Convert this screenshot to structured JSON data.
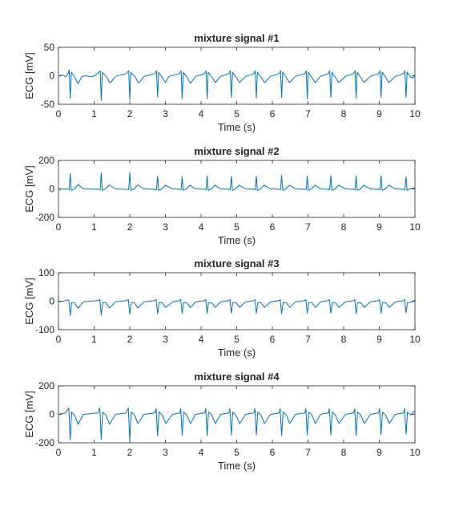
{
  "chart_data": [
    {
      "type": "line",
      "title": "mixture signal #1",
      "xlabel": "Time (s)",
      "ylabel": "ECG [mV]",
      "xlim": [
        0,
        10
      ],
      "ylim": [
        -50,
        50
      ],
      "xticks": [
        0,
        1,
        2,
        3,
        4,
        5,
        6,
        7,
        8,
        9,
        10
      ],
      "yticks": [
        -50,
        0,
        50
      ],
      "grid": false,
      "line_color": "#0072BD",
      "beat_times": [
        0.33,
        1.2,
        2.0,
        2.78,
        3.47,
        4.17,
        4.85,
        5.55,
        6.26,
        6.98,
        7.64,
        8.35,
        9.05,
        9.75
      ],
      "r_peak_values": [
        -40,
        -43,
        -42,
        -37,
        -40,
        -40,
        -38,
        -39,
        -38,
        -40,
        -38,
        -40,
        -38,
        -38
      ],
      "series": [
        {
          "x": [
            0,
            0.12,
            0.2,
            0.27,
            0.3,
            0.33,
            0.36,
            0.45,
            0.55,
            0.65,
            0.75,
            0.95,
            1.1,
            1.17,
            1.2,
            1.23,
            1.35,
            1.45,
            1.6,
            1.9,
            1.97,
            2.0,
            2.03,
            2.15,
            2.25,
            2.4,
            2.7,
            2.75,
            2.78,
            2.81,
            2.9,
            3.0,
            3.1,
            3.4,
            3.44,
            3.47,
            3.5,
            3.6,
            3.7,
            3.85,
            4.1,
            4.14,
            4.17,
            4.2,
            4.3,
            4.4,
            4.55,
            4.78,
            4.82,
            4.85,
            4.88,
            4.98,
            5.08,
            5.25,
            5.48,
            5.52,
            5.55,
            5.58,
            5.68,
            5.78,
            5.95,
            6.19,
            6.23,
            6.26,
            6.29,
            6.38,
            6.48,
            6.65,
            6.91,
            6.95,
            6.98,
            7.01,
            7.1,
            7.2,
            7.35,
            7.57,
            7.61,
            7.64,
            7.67,
            7.76,
            7.86,
            8.05,
            8.28,
            8.32,
            8.35,
            8.38,
            8.47,
            8.57,
            8.75,
            8.98,
            9.02,
            9.05,
            9.08,
            9.17,
            9.27,
            9.45,
            9.68,
            9.72,
            9.75,
            9.78,
            9.87,
            9.95,
            10
          ],
          "values": [
            -1,
            2,
            -2,
            4,
            10,
            -40,
            6,
            -2,
            -14,
            -2,
            0,
            -2,
            4,
            9,
            -43,
            6,
            -2,
            -13,
            -1,
            4,
            9,
            -42,
            6,
            -2,
            -13,
            -1,
            4,
            9,
            -37,
            6,
            -2,
            -12,
            -1,
            4,
            9,
            -40,
            6,
            -2,
            -13,
            -1,
            4,
            9,
            -40,
            6,
            -2,
            -12,
            -1,
            4,
            9,
            -38,
            6,
            -2,
            -12,
            -1,
            4,
            9,
            -39,
            6,
            -2,
            -12,
            -1,
            4,
            9,
            -38,
            6,
            -2,
            -12,
            -1,
            4,
            9,
            -40,
            6,
            -2,
            -12,
            -1,
            4,
            9,
            -38,
            6,
            -2,
            -12,
            -1,
            4,
            9,
            -40,
            6,
            -2,
            -12,
            -1,
            4,
            9,
            -38,
            6,
            -2,
            -12,
            -1,
            4,
            9,
            -38,
            6,
            -2,
            -4,
            2
          ]
        }
      ]
    },
    {
      "type": "line",
      "title": "mixture signal #2",
      "xlabel": "Time (s)",
      "ylabel": "ECG [mV]",
      "xlim": [
        0,
        10
      ],
      "ylim": [
        -200,
        200
      ],
      "xticks": [
        0,
        1,
        2,
        3,
        4,
        5,
        6,
        7,
        8,
        9,
        10
      ],
      "yticks": [
        -200,
        0,
        200
      ],
      "grid": false,
      "line_color": "#0072BD",
      "beat_times": [
        0.33,
        1.2,
        2.0,
        2.78,
        3.47,
        4.17,
        4.85,
        5.55,
        6.26,
        6.98,
        7.64,
        8.35,
        9.05,
        9.75
      ],
      "r_peak_values": [
        108,
        112,
        115,
        90,
        85,
        90,
        88,
        90,
        95,
        90,
        93,
        90,
        92,
        85
      ],
      "series": [
        {
          "x": [
            0,
            0.2,
            0.3,
            0.33,
            0.36,
            0.45,
            0.55,
            0.7,
            1.1,
            1.17,
            1.2,
            1.23,
            1.32,
            1.42,
            1.6,
            1.9,
            1.97,
            2.0,
            2.03,
            2.12,
            2.22,
            2.4,
            2.7,
            2.75,
            2.78,
            2.81,
            2.9,
            3.0,
            3.2,
            3.4,
            3.44,
            3.47,
            3.5,
            3.59,
            3.69,
            3.85,
            4.1,
            4.14,
            4.17,
            4.2,
            4.29,
            4.39,
            4.55,
            4.78,
            4.82,
            4.85,
            4.88,
            4.97,
            5.07,
            5.25,
            5.48,
            5.52,
            5.55,
            5.58,
            5.67,
            5.77,
            5.95,
            6.19,
            6.23,
            6.26,
            6.29,
            6.38,
            6.48,
            6.65,
            6.91,
            6.95,
            6.98,
            7.01,
            7.1,
            7.2,
            7.35,
            7.57,
            7.61,
            7.64,
            7.67,
            7.76,
            7.86,
            8.05,
            8.28,
            8.32,
            8.35,
            8.38,
            8.47,
            8.57,
            8.75,
            8.98,
            9.02,
            9.05,
            9.08,
            9.17,
            9.27,
            9.45,
            9.68,
            9.72,
            9.75,
            9.78,
            9.87,
            9.97,
            10
          ],
          "values": [
            -3,
            0,
            -5,
            108,
            -10,
            0,
            30,
            0,
            -3,
            -5,
            112,
            -10,
            0,
            28,
            0,
            -3,
            -5,
            115,
            -10,
            0,
            28,
            0,
            -3,
            -5,
            90,
            -10,
            0,
            26,
            0,
            -3,
            -5,
            85,
            -10,
            0,
            26,
            0,
            -3,
            -5,
            90,
            -10,
            0,
            26,
            0,
            -3,
            -5,
            88,
            -10,
            0,
            26,
            0,
            -3,
            -5,
            90,
            -10,
            0,
            26,
            0,
            -3,
            -5,
            95,
            -10,
            0,
            26,
            0,
            -3,
            -5,
            90,
            -10,
            0,
            26,
            0,
            -3,
            -5,
            93,
            -10,
            0,
            26,
            0,
            -3,
            -5,
            90,
            -10,
            0,
            26,
            0,
            -3,
            -5,
            92,
            -10,
            0,
            26,
            0,
            -3,
            -5,
            85,
            -10,
            0,
            6,
            -4
          ]
        }
      ]
    },
    {
      "type": "line",
      "title": "mixture signal #3",
      "xlabel": "Time (s)",
      "ylabel": "ECG [mV]",
      "xlim": [
        0,
        10
      ],
      "ylim": [
        -100,
        100
      ],
      "xticks": [
        0,
        1,
        2,
        3,
        4,
        5,
        6,
        7,
        8,
        9,
        10
      ],
      "yticks": [
        -100,
        0,
        100
      ],
      "grid": false,
      "line_color": "#0072BD",
      "beat_times": [
        0.33,
        1.2,
        2.0,
        2.78,
        3.47,
        4.17,
        4.85,
        5.55,
        6.26,
        6.98,
        7.64,
        8.35,
        9.05,
        9.75
      ],
      "r_peak_values": [
        -50,
        -48,
        -46,
        -44,
        -42,
        -42,
        -42,
        -42,
        -43,
        -42,
        -42,
        -44,
        -42,
        -40
      ],
      "series": [
        {
          "x": [
            0,
            0.2,
            0.29,
            0.33,
            0.37,
            0.45,
            0.55,
            0.7,
            1.1,
            1.16,
            1.2,
            1.24,
            1.33,
            1.43,
            1.6,
            1.9,
            1.96,
            2.0,
            2.04,
            2.13,
            2.23,
            2.4,
            2.7,
            2.74,
            2.78,
            2.82,
            2.91,
            3.01,
            3.2,
            3.4,
            3.43,
            3.47,
            3.51,
            3.6,
            3.7,
            3.85,
            4.1,
            4.13,
            4.17,
            4.21,
            4.3,
            4.4,
            4.55,
            4.78,
            4.81,
            4.85,
            4.89,
            4.98,
            5.08,
            5.25,
            5.48,
            5.51,
            5.55,
            5.59,
            5.68,
            5.78,
            5.95,
            6.19,
            6.22,
            6.26,
            6.3,
            6.39,
            6.49,
            6.65,
            6.91,
            6.94,
            6.98,
            7.02,
            7.11,
            7.21,
            7.35,
            7.57,
            7.6,
            7.64,
            7.68,
            7.77,
            7.87,
            8.05,
            8.28,
            8.31,
            8.35,
            8.39,
            8.48,
            8.58,
            8.75,
            8.98,
            9.01,
            9.05,
            9.09,
            9.18,
            9.28,
            9.45,
            9.68,
            9.71,
            9.75,
            9.79,
            9.88,
            9.97,
            10
          ],
          "values": [
            -2,
            2,
            5,
            -50,
            -5,
            -5,
            -25,
            -2,
            2,
            6,
            -48,
            -5,
            -5,
            -24,
            -2,
            2,
            6,
            -46,
            -5,
            -5,
            -24,
            -2,
            2,
            6,
            -44,
            -5,
            -5,
            -22,
            -2,
            2,
            6,
            -42,
            -5,
            -5,
            -22,
            -2,
            2,
            6,
            -42,
            -5,
            -5,
            -22,
            -2,
            2,
            6,
            -42,
            -5,
            -5,
            -22,
            -2,
            2,
            6,
            -42,
            -5,
            -5,
            -22,
            -2,
            2,
            6,
            -43,
            -5,
            -5,
            -22,
            -2,
            2,
            6,
            -42,
            -5,
            -5,
            -22,
            -2,
            2,
            6,
            -42,
            -5,
            -5,
            -22,
            -2,
            2,
            6,
            -44,
            -5,
            -5,
            -22,
            -2,
            2,
            6,
            -42,
            -5,
            -5,
            -22,
            -2,
            2,
            6,
            -40,
            -5,
            -4,
            2,
            3
          ]
        }
      ]
    },
    {
      "type": "line",
      "title": "mixture signal #4",
      "xlabel": "Time (s)",
      "ylabel": "ECG [mV]",
      "xlim": [
        0,
        10
      ],
      "ylim": [
        -200,
        200
      ],
      "xticks": [
        0,
        1,
        2,
        3,
        4,
        5,
        6,
        7,
        8,
        9,
        10
      ],
      "yticks": [
        -200,
        0,
        200
      ],
      "grid": false,
      "line_color": "#0072BD",
      "beat_times": [
        0.33,
        1.2,
        2.0,
        2.78,
        3.47,
        4.17,
        4.85,
        5.55,
        6.26,
        6.98,
        7.64,
        8.35,
        9.05,
        9.75
      ],
      "r_peak_values": [
        -180,
        -175,
        -180,
        -150,
        -145,
        -150,
        -145,
        -145,
        -150,
        -145,
        -145,
        -150,
        -145,
        -140
      ],
      "series": [
        {
          "x": [
            0,
            0.2,
            0.29,
            0.33,
            0.37,
            0.45,
            0.55,
            0.7,
            1.1,
            1.16,
            1.2,
            1.24,
            1.33,
            1.43,
            1.6,
            1.9,
            1.96,
            2.0,
            2.04,
            2.13,
            2.23,
            2.4,
            2.7,
            2.74,
            2.78,
            2.82,
            2.91,
            3.01,
            3.2,
            3.4,
            3.43,
            3.47,
            3.51,
            3.6,
            3.7,
            3.85,
            4.1,
            4.13,
            4.17,
            4.21,
            4.3,
            4.4,
            4.55,
            4.78,
            4.81,
            4.85,
            4.89,
            4.98,
            5.08,
            5.25,
            5.48,
            5.51,
            5.55,
            5.59,
            5.68,
            5.78,
            5.95,
            6.19,
            6.22,
            6.26,
            6.3,
            6.39,
            6.49,
            6.65,
            6.91,
            6.94,
            6.98,
            7.02,
            7.11,
            7.21,
            7.35,
            7.57,
            7.6,
            7.64,
            7.68,
            7.77,
            7.87,
            8.05,
            8.28,
            8.31,
            8.35,
            8.39,
            8.48,
            8.58,
            8.75,
            8.98,
            9.01,
            9.05,
            9.09,
            9.18,
            9.28,
            9.45,
            9.68,
            9.71,
            9.75,
            9.79,
            9.88,
            9.97,
            10
          ],
          "values": [
            0,
            10,
            45,
            -180,
            15,
            -5,
            -70,
            0,
            10,
            45,
            -175,
            15,
            -5,
            -70,
            0,
            10,
            45,
            -180,
            15,
            -5,
            -65,
            0,
            10,
            40,
            -150,
            15,
            -5,
            -65,
            0,
            10,
            40,
            -145,
            15,
            -5,
            -65,
            0,
            10,
            40,
            -150,
            15,
            -5,
            -65,
            0,
            10,
            40,
            -145,
            15,
            -5,
            -65,
            0,
            10,
            40,
            -145,
            15,
            -5,
            -65,
            0,
            10,
            40,
            -150,
            15,
            -5,
            -65,
            0,
            10,
            40,
            -145,
            15,
            -5,
            -65,
            0,
            10,
            40,
            -145,
            15,
            -5,
            -65,
            0,
            10,
            40,
            -150,
            15,
            -5,
            -65,
            0,
            10,
            40,
            -145,
            15,
            -5,
            -65,
            0,
            10,
            40,
            -140,
            15,
            -5,
            20,
            10
          ]
        }
      ]
    }
  ]
}
